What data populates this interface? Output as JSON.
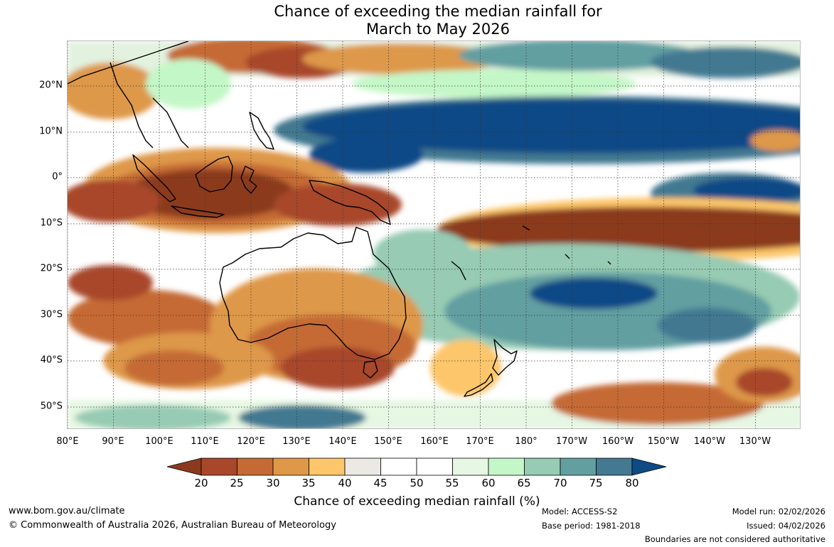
{
  "title_line1": "Chance of exceeding the median rainfall for",
  "title_line2": "March to May 2026",
  "latitude_labels": [
    "20°N",
    "10°N",
    "0°",
    "10°S",
    "20°S",
    "30°S",
    "40°S",
    "50°S"
  ],
  "longitude_labels": [
    "80°E",
    "90°E",
    "100°E",
    "110°E",
    "120°E",
    "130°E",
    "140°E",
    "150°E",
    "160°E",
    "170°E",
    "180°",
    "170°W",
    "160°W",
    "150°W",
    "140°W",
    "130°W"
  ],
  "colorbar": {
    "title": "Chance of exceeding median rainfall (%)",
    "ticks": [
      "20",
      "25",
      "30",
      "35",
      "40",
      "45",
      "50",
      "55",
      "60",
      "65",
      "70",
      "75",
      "80"
    ],
    "colors": [
      "#8b3a1e",
      "#a8472a",
      "#c56a34",
      "#de9848",
      "#fdc66a",
      "#ebe9e3",
      "#ffffff",
      "#ffffff",
      "#e6f7e3",
      "#c4f7c7",
      "#97cbb3",
      "#629fa1",
      "#437991",
      "#0d4a86"
    ]
  },
  "footer": {
    "website": "www.bom.gov.au/climate",
    "copyright": "© Commonwealth of Australia 2026, Australian Bureau of Meteorology",
    "model": "Model: ACCESS-S2",
    "base_period": "Base period: 1981-2018",
    "model_run": "Model run: 02/02/2026",
    "issued": "Issued: 04/02/2026",
    "disclaimer": "Boundaries are not considered authoritative"
  }
}
